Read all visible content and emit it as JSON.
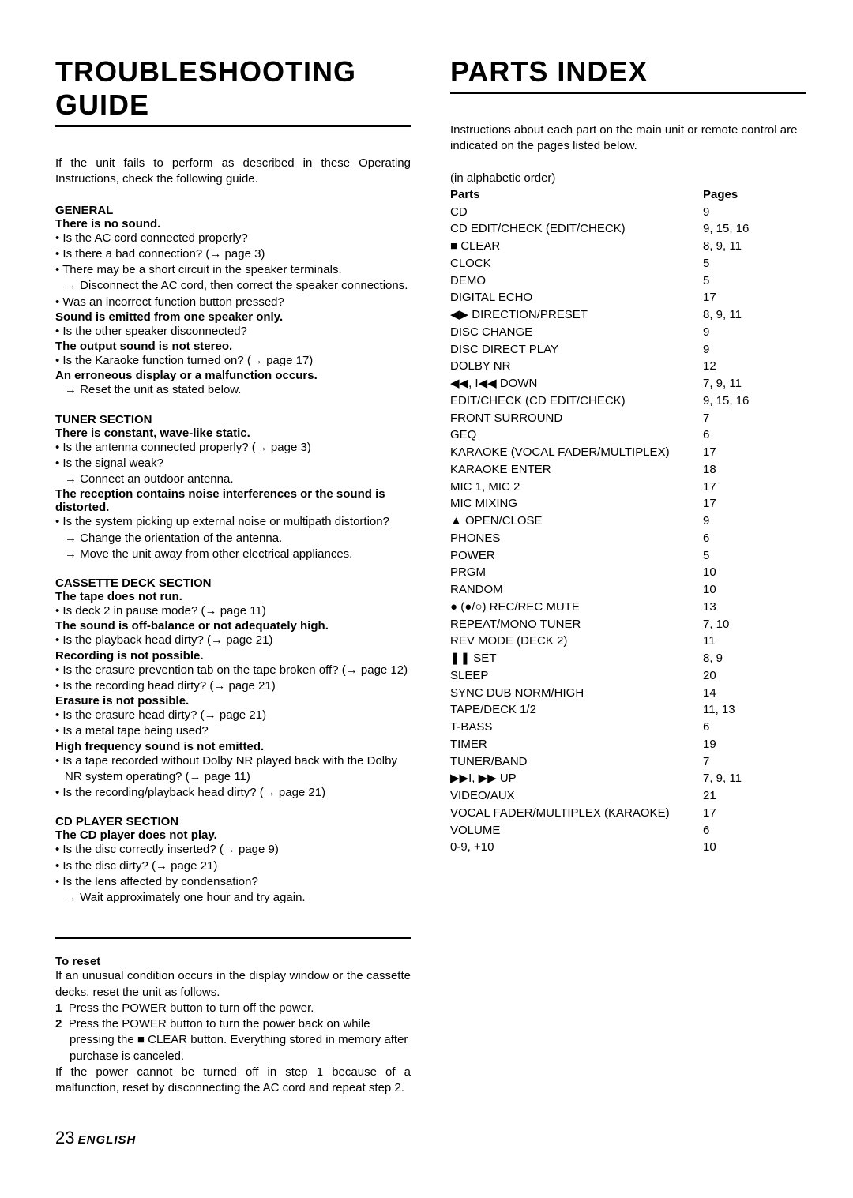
{
  "left": {
    "title": "TROUBLESHOOTING GUIDE",
    "intro": "If the unit fails to perform as described in these Operating Instructions, check the following guide.",
    "sections": {
      "general": {
        "head": "GENERAL",
        "s1": "There is no sound.",
        "b1": "• Is the AC cord connected properly?",
        "b2": "• Is there a bad connection? (→ page 3)",
        "b3": "• There may be a short circuit in the speaker terminals.",
        "a1": "→ Disconnect the AC cord, then correct the speaker connections.",
        "b4": "• Was an incorrect function button pressed?",
        "s2": "Sound is emitted from one speaker only.",
        "b5": "• Is the other speaker disconnected?",
        "s3": "The output sound is not stereo.",
        "b6": "• Is the Karaoke function turned on? (→ page 17)",
        "s4": "An erroneous display or a malfunction occurs.",
        "a2": "→ Reset the unit as stated below."
      },
      "tuner": {
        "head": "TUNER SECTION",
        "s1": "There is constant, wave-like static.",
        "b1": "• Is the antenna connected properly? (→ page 3)",
        "b2": "• Is the signal weak?",
        "a1": "→ Connect an outdoor antenna.",
        "s2": "The reception contains noise interferences or the sound is distorted.",
        "b3": "• Is the system picking up external noise or multipath distortion?",
        "a2": "→ Change the orientation of the antenna.",
        "a3": "→ Move the unit away from other electrical appliances."
      },
      "cassette": {
        "head": "CASSETTE DECK SECTION",
        "s1": "The tape does not run.",
        "b1": "• Is deck 2 in pause mode? (→ page 11)",
        "s2": "The sound is off-balance or not adequately high.",
        "b2": "• Is the playback head dirty? (→ page 21)",
        "s3": "Recording is not possible.",
        "b3": "• Is the erasure prevention tab on the tape broken off? (→ page 12)",
        "b4": "• Is the recording head dirty? (→ page 21)",
        "s4": "Erasure is not possible.",
        "b5": "• Is the erasure head dirty? (→ page 21)",
        "b6": "• Is a metal tape being used?",
        "s5": "High frequency sound is not emitted.",
        "b7": "• Is a tape recorded without Dolby NR played back with the Dolby NR system operating? (→ page 11)",
        "b8": "• Is the recording/playback head dirty? (→ page 21)"
      },
      "cd": {
        "head": "CD PLAYER SECTION",
        "s1": "The CD player does not play.",
        "b1": "• Is the disc correctly inserted? (→ page 9)",
        "b2": "• Is the disc dirty? (→ page 21)",
        "b3": "• Is the lens affected by condensation?",
        "a1": "→ Wait approximately one hour and try again."
      },
      "reset": {
        "head": "To reset",
        "p1": "If an unusual condition occurs in the display window or the cassette decks, reset the unit as follows.",
        "n1num": "1",
        "n1": "Press the POWER button to turn off the power.",
        "n2num": "2",
        "n2a": "Press the POWER button to turn the power back on while pressing the ■ CLEAR button. Everything stored in memory after purchase is canceled.",
        "p2": "If the power cannot be turned off in step 1 because of a malfunction, reset by disconnecting the AC cord and repeat step 2."
      }
    }
  },
  "right": {
    "title": "PARTS INDEX",
    "intro": "Instructions about each part on the main unit or remote control are indicated on the pages listed below.",
    "note": "(in alphabetic order)",
    "col1_head": "Parts",
    "col2_head": "Pages",
    "rows": [
      {
        "name": "CD",
        "pages": "9"
      },
      {
        "name": "CD EDIT/CHECK (EDIT/CHECK)",
        "pages": "9, 15, 16"
      },
      {
        "name": "■ CLEAR",
        "pages": "8, 9, 11"
      },
      {
        "name": "CLOCK",
        "pages": "5"
      },
      {
        "name": "DEMO",
        "pages": "5"
      },
      {
        "name": "DIGITAL ECHO",
        "pages": "17"
      },
      {
        "name": "◀▶ DIRECTION/PRESET",
        "pages": "8, 9, 11"
      },
      {
        "name": "DISC CHANGE",
        "pages": "9"
      },
      {
        "name": "DISC DIRECT PLAY",
        "pages": "9"
      },
      {
        "name": "DOLBY NR",
        "pages": "12"
      },
      {
        "name": "◀◀, I◀◀ DOWN",
        "pages": "7, 9, 11"
      },
      {
        "name": "EDIT/CHECK (CD EDIT/CHECK)",
        "pages": "9, 15, 16"
      },
      {
        "name": "FRONT SURROUND",
        "pages": "7"
      },
      {
        "name": "GEQ",
        "pages": "6"
      },
      {
        "name": "KARAOKE (VOCAL FADER/MULTIPLEX)",
        "pages": "17"
      },
      {
        "name": "KARAOKE ENTER",
        "pages": "18"
      },
      {
        "name": "MIC 1, MIC 2",
        "pages": "17"
      },
      {
        "name": "MIC MIXING",
        "pages": "17"
      },
      {
        "name": "▲ OPEN/CLOSE",
        "pages": "9"
      },
      {
        "name": "PHONES",
        "pages": "6"
      },
      {
        "name": "POWER",
        "pages": "5"
      },
      {
        "name": "PRGM",
        "pages": "10"
      },
      {
        "name": "RANDOM",
        "pages": "10"
      },
      {
        "name": "● (●/○) REC/REC MUTE",
        "pages": "13"
      },
      {
        "name": "REPEAT/MONO TUNER",
        "pages": "7, 10"
      },
      {
        "name": "REV MODE (DECK 2)",
        "pages": "11"
      },
      {
        "name": "❚❚ SET",
        "pages": "8, 9"
      },
      {
        "name": "SLEEP",
        "pages": "20"
      },
      {
        "name": "SYNC DUB NORM/HIGH",
        "pages": "14"
      },
      {
        "name": "TAPE/DECK 1/2",
        "pages": "11, 13"
      },
      {
        "name": "T-BASS",
        "pages": "6"
      },
      {
        "name": "TIMER",
        "pages": "19"
      },
      {
        "name": "TUNER/BAND",
        "pages": "7"
      },
      {
        "name": "▶▶I, ▶▶ UP",
        "pages": "7, 9, 11"
      },
      {
        "name": "VIDEO/AUX",
        "pages": "21"
      },
      {
        "name": "VOCAL FADER/MULTIPLEX (KARAOKE)",
        "pages": "17"
      },
      {
        "name": "VOLUME",
        "pages": "6"
      },
      {
        "name": "0-9, +10",
        "pages": "10"
      }
    ]
  },
  "footer": {
    "num": "23",
    "lang": "ENGLISH"
  }
}
